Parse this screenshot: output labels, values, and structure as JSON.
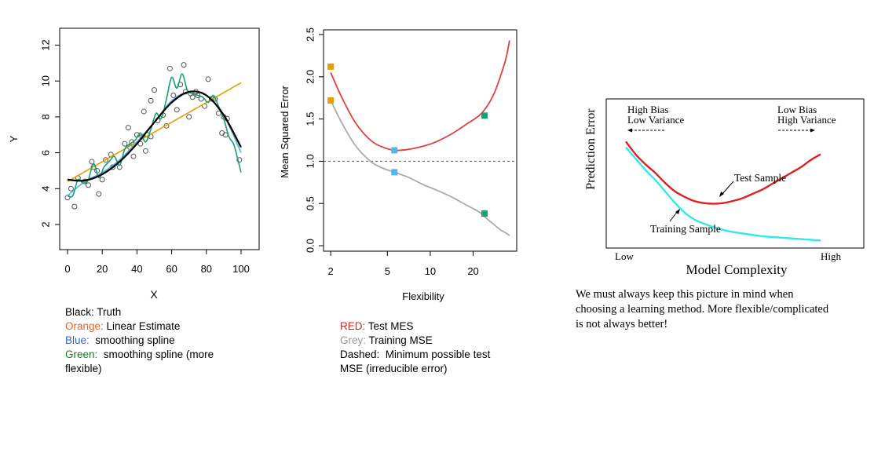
{
  "colors": {
    "truth": "#000000",
    "linear": "#E69F00",
    "spline": "#56B4E9",
    "spline_flex": "#1B9E77",
    "test_mse": "#E04040",
    "train_mse": "#AAAAAA",
    "irreducible": "#555555",
    "test_sample": "#E02020",
    "training_sample": "#33E8E8"
  },
  "chart_data": [
    {
      "type": "scatter",
      "xlabel": "X",
      "ylabel": "Y",
      "xlim": [
        0,
        100
      ],
      "ylim": [
        1.5,
        13
      ],
      "xticks": [
        0,
        20,
        40,
        60,
        80,
        100
      ],
      "yticks": [
        2,
        4,
        6,
        8,
        10,
        12
      ],
      "points": [
        [
          0,
          3.5
        ],
        [
          2,
          4.0
        ],
        [
          4,
          3.0
        ],
        [
          6,
          4.6
        ],
        [
          10,
          4.4
        ],
        [
          12,
          4.2
        ],
        [
          14,
          5.5
        ],
        [
          15,
          5.2
        ],
        [
          17,
          5.0
        ],
        [
          18,
          3.7
        ],
        [
          20,
          4.5
        ],
        [
          22,
          5.6
        ],
        [
          25,
          5.9
        ],
        [
          26,
          5.2
        ],
        [
          30,
          5.2
        ],
        [
          33,
          6.5
        ],
        [
          35,
          7.4
        ],
        [
          36,
          6.3
        ],
        [
          37,
          6.6
        ],
        [
          38,
          5.8
        ],
        [
          40,
          7.0
        ],
        [
          42,
          6.5
        ],
        [
          43,
          6.9
        ],
        [
          44,
          8.3
        ],
        [
          45,
          6.1
        ],
        [
          46,
          7.0
        ],
        [
          48,
          6.9
        ],
        [
          48,
          8.9
        ],
        [
          50,
          9.5
        ],
        [
          52,
          7.8
        ],
        [
          55,
          8.1
        ],
        [
          57,
          7.5
        ],
        [
          59,
          10.7
        ],
        [
          61,
          9.2
        ],
        [
          63,
          8.4
        ],
        [
          65,
          9.8
        ],
        [
          67,
          10.9
        ],
        [
          68,
          9.4
        ],
        [
          70,
          8.0
        ],
        [
          71,
          9.3
        ],
        [
          72,
          9.1
        ],
        [
          74,
          9.4
        ],
        [
          75,
          9.2
        ],
        [
          77,
          9.0
        ],
        [
          79,
          8.6
        ],
        [
          81,
          10.1
        ],
        [
          83,
          9.0
        ],
        [
          85,
          9.0
        ],
        [
          87,
          8.2
        ],
        [
          89,
          7.1
        ],
        [
          90,
          8.0
        ],
        [
          91,
          7.0
        ],
        [
          92,
          7.9
        ],
        [
          99,
          5.6
        ]
      ],
      "series": [
        {
          "name": "Truth",
          "color_key": "truth",
          "x": [
            0,
            10,
            20,
            30,
            40,
            50,
            60,
            70,
            80,
            90,
            100
          ],
          "y": [
            4.5,
            4.45,
            4.8,
            5.5,
            6.5,
            7.7,
            8.8,
            9.4,
            9.2,
            8.1,
            6.3
          ]
        },
        {
          "name": "Linear Estimate",
          "color_key": "linear",
          "x": [
            0,
            100
          ],
          "y": [
            4.4,
            9.9
          ]
        },
        {
          "name": "smoothing spline",
          "color_key": "spline",
          "x": [
            0,
            10,
            20,
            30,
            40,
            50,
            60,
            70,
            80,
            90,
            100
          ],
          "y": [
            3.6,
            4.4,
            4.9,
            5.6,
            6.6,
            7.7,
            8.9,
            9.4,
            9.2,
            8.1,
            6.0
          ]
        },
        {
          "name": "smoothing spline (more flexible)",
          "color_key": "spline_flex",
          "x": [
            0,
            3,
            6,
            9,
            12,
            15,
            18,
            21,
            24,
            27,
            30,
            33,
            36,
            39,
            42,
            45,
            48,
            51,
            54,
            57,
            60,
            63,
            66,
            69,
            72,
            75,
            78,
            81,
            84,
            87,
            90,
            93,
            96,
            100
          ],
          "y": [
            3.6,
            3.6,
            4.5,
            4.3,
            4.5,
            5.4,
            4.6,
            5.2,
            5.5,
            5.8,
            5.3,
            6.2,
            6.5,
            6.7,
            7.1,
            6.6,
            7.3,
            8.2,
            7.9,
            9.0,
            10.2,
            9.6,
            10.4,
            9.5,
            9.3,
            9.2,
            9.1,
            8.8,
            9.2,
            8.6,
            7.9,
            6.9,
            6.4,
            4.9
          ]
        }
      ]
    },
    {
      "type": "line",
      "xlabel": "Flexibility",
      "ylabel": "Mean Squared Error",
      "xscale": "log",
      "xlim": [
        1.85,
        42
      ],
      "ylim": [
        -0.05,
        2.6
      ],
      "xticks": [
        2,
        5,
        10,
        20
      ],
      "yticks": [
        0.0,
        0.5,
        1.0,
        1.5,
        2.0,
        2.5
      ],
      "series": [
        {
          "name": "Test MES",
          "color_key": "test_mse",
          "x": [
            2,
            2.4,
            3,
            3.8,
            4.6,
            5.6,
            7,
            9,
            11,
            14,
            18,
            22,
            25,
            28,
            31,
            34,
            36
          ],
          "y": [
            2.05,
            1.75,
            1.45,
            1.25,
            1.17,
            1.13,
            1.14,
            1.18,
            1.23,
            1.32,
            1.44,
            1.54,
            1.65,
            1.8,
            2.0,
            2.22,
            2.43
          ]
        },
        {
          "name": "Training MSE",
          "color_key": "train_mse",
          "x": [
            2,
            2.4,
            3,
            3.8,
            4.6,
            5.6,
            7,
            9,
            11,
            14,
            18,
            22,
            25,
            28,
            31,
            34,
            36
          ],
          "y": [
            1.72,
            1.45,
            1.18,
            1.0,
            0.92,
            0.87,
            0.81,
            0.72,
            0.66,
            0.58,
            0.48,
            0.4,
            0.32,
            0.25,
            0.19,
            0.15,
            0.12
          ]
        }
      ],
      "hline": 1.0,
      "markers": [
        {
          "x": 2,
          "y": 2.12,
          "color_key": "linear"
        },
        {
          "x": 2,
          "y": 1.72,
          "color_key": "linear"
        },
        {
          "x": 5.6,
          "y": 1.13,
          "color_key": "spline"
        },
        {
          "x": 5.6,
          "y": 0.87,
          "color_key": "spline"
        },
        {
          "x": 24,
          "y": 1.54,
          "color_key": "spline_flex"
        },
        {
          "x": 24,
          "y": 0.38,
          "color_key": "spline_flex"
        }
      ]
    },
    {
      "type": "line",
      "xlabel": "Model Complexity",
      "ylabel": "Prediction Error",
      "xticks": [
        "Low",
        "High"
      ],
      "annotations": [
        "High Bias",
        "Low Variance",
        "Low Bias",
        "High Variance",
        "Test Sample",
        "Training Sample"
      ],
      "series": [
        {
          "name": "Test Sample",
          "color_key": "test_sample",
          "x": [
            0,
            0.05,
            0.1,
            0.15,
            0.2,
            0.25,
            0.3,
            0.35,
            0.4,
            0.45,
            0.5,
            0.55,
            0.6,
            0.65,
            0.7,
            0.75,
            0.8,
            0.85,
            0.9,
            0.95,
            1
          ],
          "y": [
            0.72,
            0.63,
            0.56,
            0.5,
            0.43,
            0.37,
            0.33,
            0.3,
            0.285,
            0.28,
            0.285,
            0.3,
            0.32,
            0.35,
            0.38,
            0.42,
            0.46,
            0.5,
            0.54,
            0.59,
            0.63
          ]
        },
        {
          "name": "Training Sample",
          "color_key": "training_sample",
          "x": [
            0,
            0.05,
            0.1,
            0.15,
            0.2,
            0.25,
            0.3,
            0.35,
            0.4,
            0.45,
            0.5,
            0.55,
            0.6,
            0.65,
            0.7,
            0.75,
            0.8,
            0.85,
            0.9,
            0.95,
            1
          ],
          "y": [
            0.68,
            0.6,
            0.52,
            0.45,
            0.37,
            0.29,
            0.22,
            0.17,
            0.14,
            0.115,
            0.095,
            0.08,
            0.07,
            0.06,
            0.05,
            0.045,
            0.04,
            0.035,
            0.03,
            0.025,
            0.02
          ]
        }
      ]
    }
  ],
  "panel1": {
    "xlabel": "X",
    "ylabel": "Y",
    "xticks": [
      "0",
      "20",
      "40",
      "60",
      "80",
      "100"
    ],
    "yticks": [
      "2",
      "4",
      "6",
      "8",
      "10",
      "12"
    ]
  },
  "panel2": {
    "xlabel": "Flexibility",
    "ylabel": "Mean Squared Error",
    "xticks": [
      "2",
      "5",
      "10",
      "20"
    ],
    "yticks": [
      "0.0",
      "0.5",
      "1.0",
      "1.5",
      "2.0",
      "2.5"
    ]
  },
  "panel3": {
    "ylabel": "Prediction Error",
    "xlabel": "Model Complexity",
    "low": "Low",
    "high": "High",
    "hb1": "High Bias",
    "hb2": "Low Variance",
    "lb1": "Low Bias",
    "lb2": "High Variance",
    "test_label": "Test Sample",
    "train_label": "Training Sample"
  },
  "legend1": {
    "black_key": "Black:",
    "black_text": " Truth",
    "orange_key": "Orange:",
    "orange_text": " Linear Estimate",
    "blue_key": "Blue:",
    "blue_text": "  smoothing spline",
    "green_key": "Green:",
    "green_text": "  smoothing spline (more",
    "green_text2": "flexible)",
    "orange_color": "#E8601C",
    "blue_color": "#3366CC",
    "green_color": "#1A7F1A"
  },
  "legend2": {
    "red_key": "RED:",
    "red_text": " Test MES",
    "grey_key": "Grey:",
    "grey_text": " Training MSE",
    "dashed_line1": "Dashed:  Minimum possible test",
    "dashed_line2": "MSE (irreducible error)",
    "red_color": "#DD2222",
    "grey_color": "#999999"
  },
  "caption": {
    "line1": "We must always keep this picture in mind when",
    "line2": "choosing a learning method. More flexible/complicated",
    "line3": "is not always better!"
  }
}
